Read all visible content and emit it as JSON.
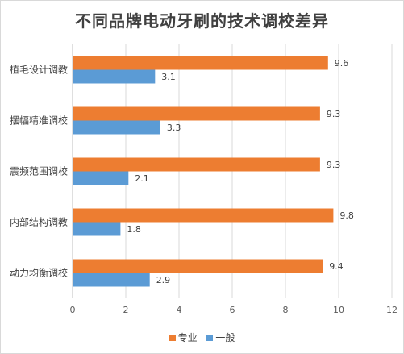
{
  "chart_data": {
    "type": "bar",
    "orientation": "horizontal",
    "title": "不同品牌电动牙刷的技术调校差异",
    "categories": [
      "植毛设计调教",
      "摆幅精准调校",
      "震频范围调校",
      "内部结构调教",
      "动力均衡调校"
    ],
    "series": [
      {
        "name": "专业",
        "color": "#ED7D31",
        "values": [
          9.6,
          9.3,
          9.3,
          9.8,
          9.4
        ]
      },
      {
        "name": "一般",
        "color": "#5B9BD5",
        "values": [
          3.1,
          3.3,
          2.1,
          1.8,
          2.9
        ]
      }
    ],
    "xlim": [
      0,
      12
    ],
    "xticks": [
      "0",
      "2",
      "4",
      "6",
      "8",
      "10",
      "12"
    ],
    "grid": "vertical",
    "legend_position": "bottom"
  }
}
